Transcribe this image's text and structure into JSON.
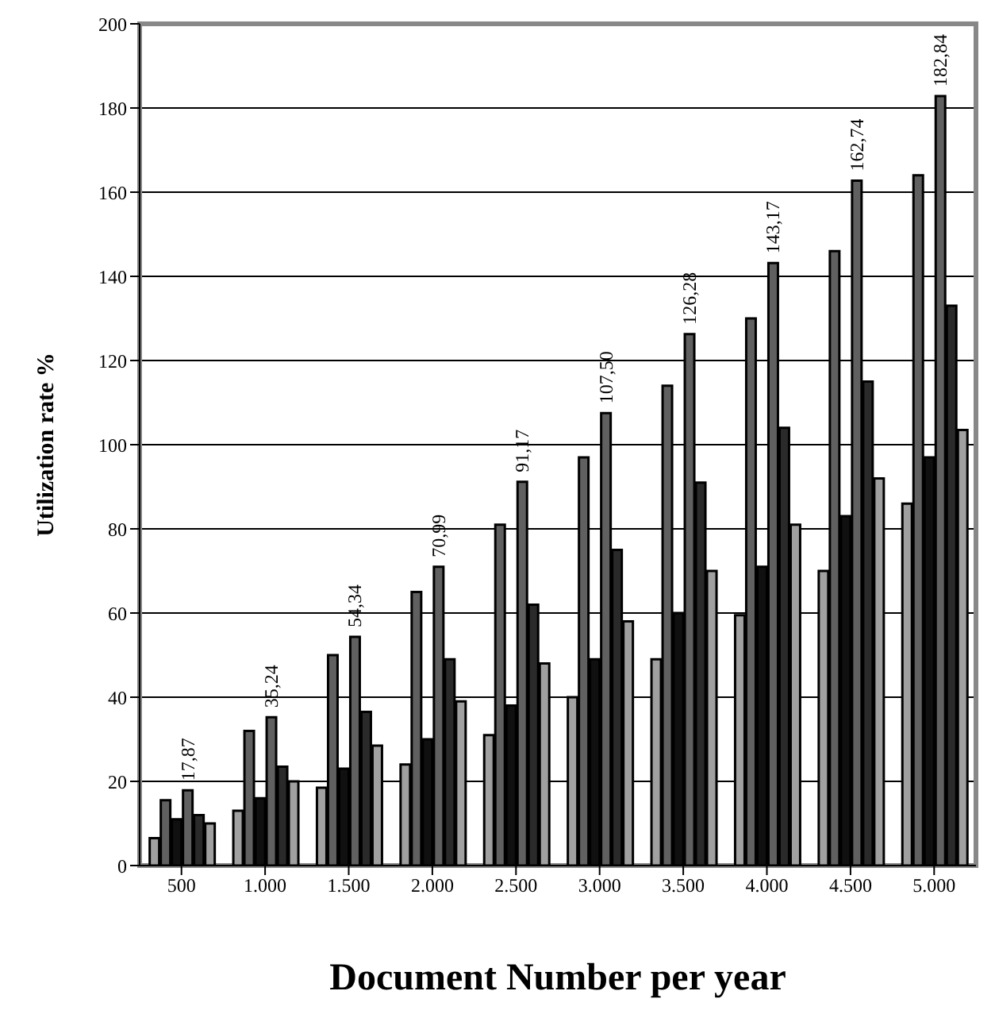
{
  "chart_data": {
    "type": "bar",
    "xlabel": "Document Number  per year",
    "ylabel": "Utilization rate %",
    "categories": [
      "500",
      "1.000",
      "1.500",
      "2.000",
      "2.500",
      "3.000",
      "3.500",
      "4.000",
      "4.500",
      "5.000"
    ],
    "series": [
      {
        "color": "#a0a0a0",
        "values": [
          6.5,
          13,
          18.5,
          24,
          31,
          40,
          49,
          59.5,
          70,
          86
        ]
      },
      {
        "color": "#606060",
        "values": [
          15.5,
          32,
          50,
          65,
          81,
          97,
          114,
          130,
          146,
          164
        ]
      },
      {
        "color": "#101010",
        "values": [
          11,
          16,
          23,
          30,
          38,
          49,
          60,
          71,
          83,
          97
        ]
      },
      {
        "color": "#606060",
        "values": [
          17.87,
          35.24,
          54.34,
          70.99,
          91.17,
          107.5,
          126.28,
          143.17,
          162.74,
          182.84
        ],
        "value_labels": [
          "17,87",
          "35,24",
          "54,34",
          "70,99",
          "91,17",
          "107,50",
          "126,28",
          "143,17",
          "162,74",
          "182,84"
        ]
      },
      {
        "color": "#2a2a2a",
        "values": [
          12,
          23.5,
          36.5,
          49,
          62,
          75,
          91,
          104,
          115,
          133
        ]
      },
      {
        "color": "#a0a0a0",
        "values": [
          10,
          20,
          28.5,
          39,
          48,
          58,
          70,
          81,
          92,
          103.5
        ]
      }
    ],
    "ylim": [
      0,
      200
    ],
    "yticks": [
      0,
      20,
      40,
      60,
      80,
      100,
      120,
      140,
      160,
      180,
      200
    ],
    "grid": "y"
  }
}
